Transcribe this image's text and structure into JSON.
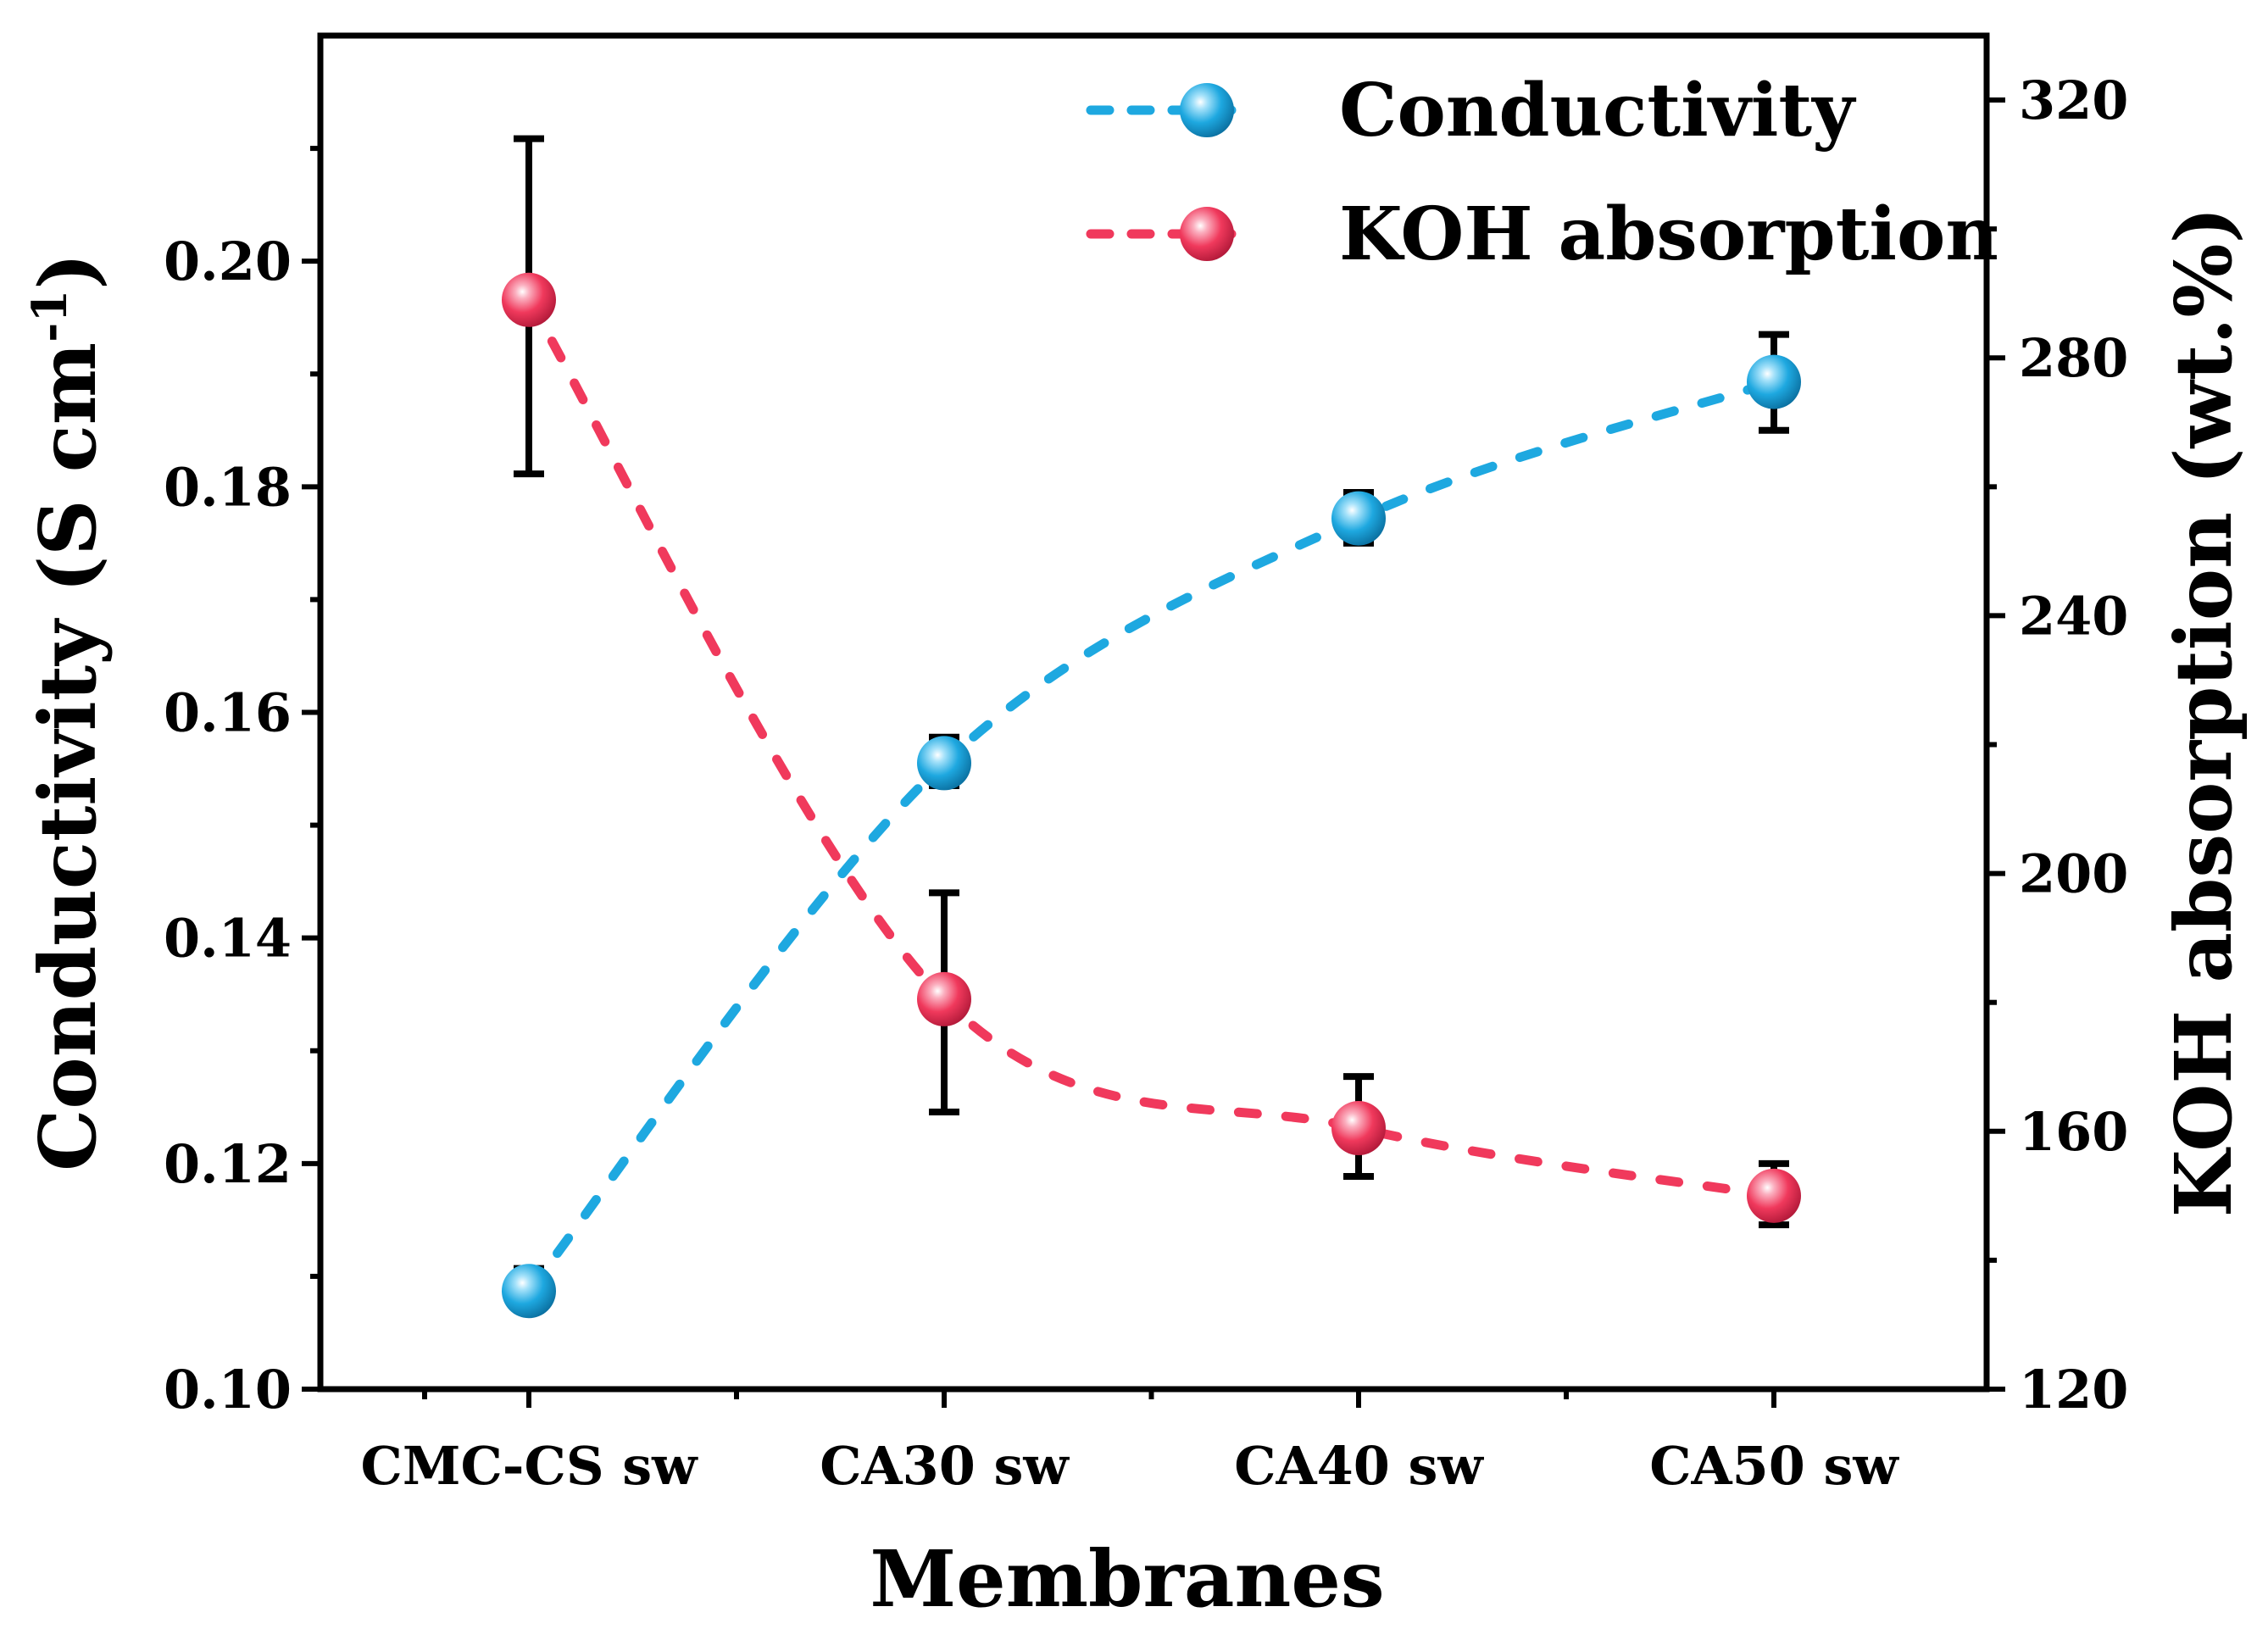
{
  "chart_data": {
    "type": "line",
    "xlabel": "Membranes",
    "categories": [
      "CMC-CS sw",
      "CA30 sw",
      "CA40 sw",
      "CA50 sw"
    ],
    "y_left": {
      "label_main": "Conductivity (S cm",
      "label_sup": "-1",
      "label_end": ")",
      "ylim": [
        0.1,
        0.22
      ],
      "ticks": [
        "0.10",
        "0.12",
        "0.14",
        "0.16",
        "0.18",
        "0.20"
      ]
    },
    "y_right": {
      "label": "KOH absorption (wt.%)",
      "ylim": [
        120,
        330
      ],
      "ticks": [
        "120",
        "160",
        "200",
        "240",
        "280",
        "320"
      ]
    },
    "series": [
      {
        "name": "Conductivity",
        "axis": "left",
        "color": "#1ea8e0",
        "values": [
          0.1087,
          0.1555,
          0.1772,
          0.1893
        ],
        "err_low": [
          0.107,
          0.1535,
          0.175,
          0.185
        ],
        "err_high": [
          0.1107,
          0.1578,
          0.1795,
          0.1935
        ]
      },
      {
        "name": "KOH absorption",
        "axis": "right",
        "color": "#f0395c",
        "values": [
          289.0,
          180.5,
          160.5,
          150.0
        ],
        "err_low": [
          262.0,
          163.0,
          153.0,
          145.5
        ],
        "err_high": [
          314.0,
          197.0,
          168.5,
          155.0
        ]
      }
    ]
  }
}
